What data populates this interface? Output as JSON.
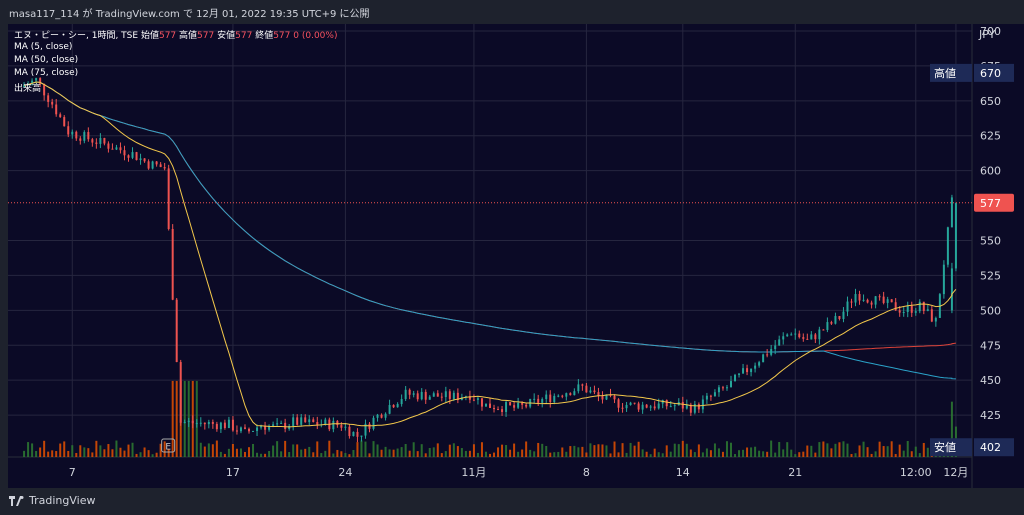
{
  "publication": "masa117_114 が TradingView.com で 12月 01, 2022 19:35 UTC+9 に公開",
  "legend": {
    "symbol": "エヌ・ピー・シー, 1時間, TSE",
    "open_label": "始値",
    "open": "577",
    "high_label": "高値",
    "high": "577",
    "low_label": "安値",
    "low": "577",
    "close_label": "終値",
    "close": "577",
    "change": "0 (0.00%)"
  },
  "ma_labels": [
    "MA (5, close)",
    "MA (50, close)",
    "MA (75, close)",
    "出来高"
  ],
  "currency": "JPY",
  "branding": "TradingView",
  "colors": {
    "background": "#0b0a26",
    "up": "#26a69a",
    "down": "#ef5350",
    "ma5": "#f3c84b",
    "ma50": "#2ba3c9",
    "ma75": "#e0443a",
    "price_line": "#ef5350"
  },
  "chart_data": {
    "type": "candlestick",
    "y_range": [
      395,
      705
    ],
    "y_ticks": [
      700,
      675,
      650,
      625,
      600,
      550,
      525,
      500,
      475,
      450,
      425
    ],
    "x_tick_labels": [
      {
        "label": "7",
        "date": "2022-10-07"
      },
      {
        "label": "17",
        "date": "2022-10-17"
      },
      {
        "label": "24",
        "date": "2022-10-24"
      },
      {
        "label": "11月",
        "date": "2022-11-01"
      },
      {
        "label": "8",
        "date": "2022-11-08"
      },
      {
        "label": "14",
        "date": "2022-11-14"
      },
      {
        "label": "21",
        "date": "2022-11-21"
      },
      {
        "label": "12:00",
        "date": "2022-11-28 12:00"
      },
      {
        "label": "12月",
        "date": "2022-12-01"
      }
    ],
    "price_badges": [
      {
        "label": "高値",
        "value": "670"
      },
      {
        "label": "",
        "value": "577",
        "current": true
      },
      {
        "label": "安値",
        "value": "402"
      }
    ],
    "event_marker": "E",
    "close_path": [
      {
        "date": "2022-10-04",
        "close": 660
      },
      {
        "date": "2022-10-05",
        "close": 665
      },
      {
        "date": "2022-10-06",
        "close": 648
      },
      {
        "date": "2022-10-07",
        "close": 628
      },
      {
        "date": "2022-10-11",
        "close": 612
      },
      {
        "date": "2022-10-12",
        "close": 605
      },
      {
        "date": "2022-10-13",
        "close": 602
      },
      {
        "date": "2022-10-14",
        "close": 420
      },
      {
        "date": "2022-10-17",
        "close": 418
      },
      {
        "date": "2022-10-18",
        "close": 412
      },
      {
        "date": "2022-10-19",
        "close": 418
      },
      {
        "date": "2022-10-20",
        "close": 416
      },
      {
        "date": "2022-10-21",
        "close": 420
      },
      {
        "date": "2022-10-24",
        "close": 418
      },
      {
        "date": "2022-10-25",
        "close": 410
      },
      {
        "date": "2022-10-26",
        "close": 422
      },
      {
        "date": "2022-10-27",
        "close": 432
      },
      {
        "date": "2022-10-28",
        "close": 440
      },
      {
        "date": "2022-10-31",
        "close": 438
      },
      {
        "date": "2022-11-01",
        "close": 440
      },
      {
        "date": "2022-11-02",
        "close": 432
      },
      {
        "date": "2022-11-04",
        "close": 430
      },
      {
        "date": "2022-11-07",
        "close": 442
      },
      {
        "date": "2022-11-08",
        "close": 445
      },
      {
        "date": "2022-11-09",
        "close": 438
      },
      {
        "date": "2022-11-10",
        "close": 434
      },
      {
        "date": "2022-11-11",
        "close": 432
      },
      {
        "date": "2022-11-14",
        "close": 432
      },
      {
        "date": "2022-11-15",
        "close": 430
      },
      {
        "date": "2022-11-16",
        "close": 438
      },
      {
        "date": "2022-11-17",
        "close": 445
      },
      {
        "date": "2022-11-18",
        "close": 455
      },
      {
        "date": "2022-11-21",
        "close": 485
      },
      {
        "date": "2022-11-22",
        "close": 478
      },
      {
        "date": "2022-11-24",
        "close": 495
      },
      {
        "date": "2022-11-25",
        "close": 512
      },
      {
        "date": "2022-11-28",
        "close": 500
      },
      {
        "date": "2022-11-29",
        "close": 503
      },
      {
        "date": "2022-11-30",
        "close": 492
      },
      {
        "date": "2022-12-01",
        "close": 577
      }
    ]
  }
}
